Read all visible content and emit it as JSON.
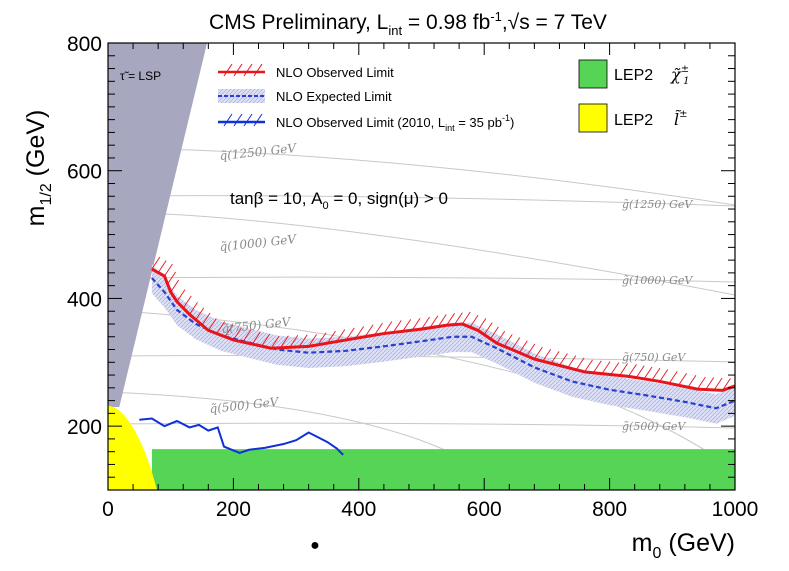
{
  "chart_data": {
    "type": "line",
    "title": "CMS Preliminary, L_int = 0.98 fb⁻¹, √s = 7 TeV",
    "title_parts": {
      "main": "CMS Preliminary, L",
      "sub": "int",
      "mid": " = 0.98 fb",
      "sup": "-1",
      "sep": ",",
      "root": "√",
      "tail": "s = 7 TeV"
    },
    "xlabel": "m_0 (GeV)",
    "xlabel_parts": {
      "main": "m",
      "sub": "0",
      "unit": " (GeV)"
    },
    "ylabel": "m_1/2 (GeV)",
    "ylabel_parts": {
      "main": "m",
      "sub": "1/2",
      "unit": " (GeV)"
    },
    "xlim": [
      0,
      1000
    ],
    "ylim": [
      100,
      800
    ],
    "x_ticks": [
      0,
      200,
      400,
      600,
      800,
      1000
    ],
    "y_ticks": [
      200,
      400,
      600,
      800
    ],
    "annotation": "tanβ = 10, A_0 = 0, sign(μ) > 0",
    "annotation_parts": {
      "a": "tanβ = 10, A",
      "sub": "0",
      "b": " = 0, sign(μ) > 0"
    },
    "stau_lsp_label": "τ̃ = LSP",
    "legend": {
      "observed": "NLO Observed Limit",
      "expected": "NLO Expected Limit",
      "observed_2010_a": "NLO Observed Limit (2010, L",
      "observed_2010_sub": "int",
      "observed_2010_b": " = 35 pb",
      "observed_2010_sup": "-1",
      "observed_2010_c": ")",
      "lep_chargino": "LEP2",
      "lep_chargino_symbol": "χ̃",
      "lep_chargino_sup": "±",
      "lep_chargino_sub": "1",
      "lep_slepton": "LEP2",
      "lep_slepton_symbol": "l̃",
      "lep_slepton_sup": "±"
    },
    "squark_labels": [
      "q̃(1250) GeV",
      "q̃(1000) GeV",
      "q̃(750) GeV",
      "q̃(500) GeV"
    ],
    "gluino_labels": [
      "g̃(1250) GeV",
      "g̃(1000) GeV",
      "g̃(750) GeV",
      "g̃(500) GeV"
    ],
    "colors": {
      "observed": "#e8141c",
      "expected": "#2b3fd0",
      "expected_band": "#c6c9ee",
      "observed_2010": "#1030d8",
      "lep_chargino": "#55d455",
      "lep_slepton": "#ffff00",
      "stau_lsp": "#a7a7bf",
      "contour": "#c8c8c8",
      "contour_text": "#8a8a8a"
    },
    "series": [
      {
        "name": "NLO Observed Limit",
        "x": [
          70,
          90,
          100,
          110,
          130,
          160,
          200,
          260,
          320,
          380,
          440,
          500,
          540,
          565,
          590,
          620,
          680,
          760,
          830,
          880,
          940,
          980,
          1000
        ],
        "y": [
          446,
          435,
          410,
          395,
          375,
          350,
          335,
          322,
          325,
          335,
          345,
          352,
          358,
          360,
          350,
          330,
          305,
          285,
          278,
          270,
          258,
          256,
          263
        ]
      },
      {
        "name": "NLO Expected Limit",
        "x": [
          70,
          90,
          110,
          140,
          180,
          220,
          270,
          320,
          380,
          440,
          500,
          550,
          580,
          620,
          680,
          740,
          800,
          860,
          920,
          970,
          1000
        ],
        "y": [
          432,
          410,
          382,
          360,
          342,
          332,
          320,
          315,
          318,
          325,
          333,
          340,
          340,
          322,
          292,
          270,
          257,
          248,
          238,
          228,
          240
        ]
      },
      {
        "name": "NLO Observed Limit (2010, L_int = 35 pb⁻¹)",
        "x": [
          50,
          70,
          90,
          110,
          130,
          145,
          160,
          175,
          185,
          200,
          210,
          225,
          250,
          280,
          300,
          320,
          340,
          350,
          365,
          375
        ],
        "y": [
          210,
          212,
          200,
          208,
          198,
          202,
          193,
          198,
          168,
          162,
          158,
          163,
          166,
          172,
          178,
          190,
          180,
          175,
          165,
          155
        ]
      }
    ],
    "excluded_regions": [
      {
        "name": "LEP2 chargino",
        "x": [
          70,
          1000
        ],
        "y": [
          100,
          164
        ]
      },
      {
        "name": "LEP2 slepton",
        "x": [
          0,
          75
        ],
        "y": [
          100,
          230
        ]
      },
      {
        "name": "stau LSP",
        "x": [
          0,
          180
        ],
        "y": [
          230,
          800
        ]
      }
    ],
    "grid": false
  },
  "footer": {
    "marker": "●"
  }
}
